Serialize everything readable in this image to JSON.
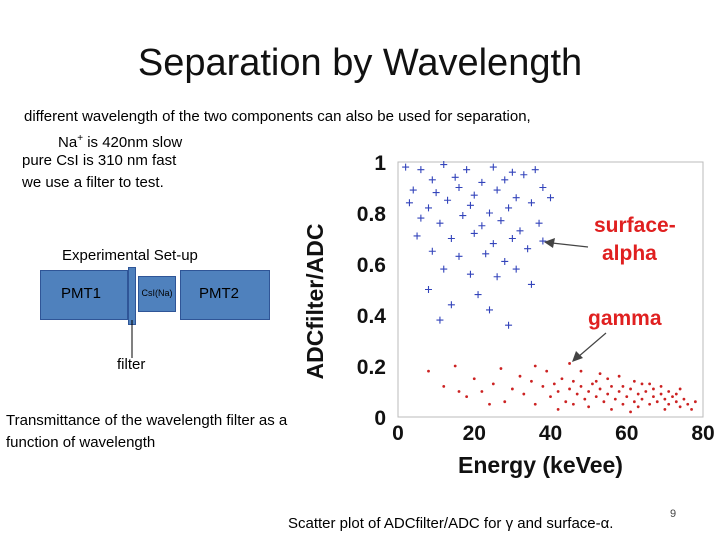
{
  "slide": {
    "title": "Separation by Wavelength",
    "intro_lines": [
      "different wavelength of the two components can also be used for separation,",
      "Na",
      "+",
      " is 420nm slow",
      "pure CsI is 310 nm fast",
      "we use a filter to test."
    ],
    "setup_label": "Experimental Set-up",
    "pmt1_label": "PMT1",
    "pmt2_label": "PMT2",
    "crystal_label": "CsI(Na)",
    "filter_label": "filter",
    "transmittance_caption": "Transmittance of the wavelength filter as a function of wavelength",
    "scatter_caption": "Scatter plot of ADCfilter/ADC for γ and surface-α.",
    "page_number": "9"
  },
  "chart_data": {
    "type": "scatter",
    "title": "",
    "xlabel": "Energy (keVee)",
    "ylabel": "ADCfilter/ADC",
    "xlim": [
      0,
      80
    ],
    "ylim": [
      0,
      1
    ],
    "xticks": [
      0,
      20,
      40,
      60,
      80
    ],
    "yticks": [
      0,
      0.2,
      0.4,
      0.6,
      0.8,
      1
    ],
    "xtick_labels": [
      "0",
      "20",
      "40",
      "60",
      "80"
    ],
    "ytick_labels": [
      "0",
      "0.2",
      "0.4",
      "0.6",
      "0.8",
      "1"
    ],
    "series": [
      {
        "name": "surface-alpha",
        "marker": "plus",
        "color": "#3344bb",
        "points": [
          [
            2,
            0.98
          ],
          [
            6,
            0.97
          ],
          [
            12,
            0.99
          ],
          [
            18,
            0.97
          ],
          [
            25,
            0.98
          ],
          [
            30,
            0.96
          ],
          [
            36,
            0.97
          ],
          [
            9,
            0.93
          ],
          [
            15,
            0.94
          ],
          [
            22,
            0.92
          ],
          [
            28,
            0.93
          ],
          [
            33,
            0.95
          ],
          [
            4,
            0.89
          ],
          [
            10,
            0.88
          ],
          [
            16,
            0.9
          ],
          [
            20,
            0.87
          ],
          [
            26,
            0.89
          ],
          [
            31,
            0.86
          ],
          [
            38,
            0.9
          ],
          [
            3,
            0.84
          ],
          [
            8,
            0.82
          ],
          [
            13,
            0.85
          ],
          [
            19,
            0.83
          ],
          [
            24,
            0.8
          ],
          [
            29,
            0.82
          ],
          [
            35,
            0.84
          ],
          [
            40,
            0.86
          ],
          [
            6,
            0.78
          ],
          [
            11,
            0.76
          ],
          [
            17,
            0.79
          ],
          [
            22,
            0.75
          ],
          [
            27,
            0.77
          ],
          [
            32,
            0.73
          ],
          [
            37,
            0.76
          ],
          [
            5,
            0.71
          ],
          [
            14,
            0.7
          ],
          [
            20,
            0.72
          ],
          [
            25,
            0.68
          ],
          [
            30,
            0.7
          ],
          [
            34,
            0.66
          ],
          [
            38,
            0.69
          ],
          [
            9,
            0.65
          ],
          [
            16,
            0.63
          ],
          [
            23,
            0.64
          ],
          [
            28,
            0.61
          ],
          [
            12,
            0.58
          ],
          [
            19,
            0.56
          ],
          [
            26,
            0.55
          ],
          [
            31,
            0.58
          ],
          [
            35,
            0.52
          ],
          [
            8,
            0.5
          ],
          [
            21,
            0.48
          ],
          [
            14,
            0.44
          ],
          [
            24,
            0.42
          ],
          [
            11,
            0.38
          ],
          [
            29,
            0.36
          ]
        ]
      },
      {
        "name": "gamma",
        "marker": "dot",
        "color": "#cc2222",
        "points": [
          [
            8,
            0.18
          ],
          [
            12,
            0.12
          ],
          [
            15,
            0.2
          ],
          [
            18,
            0.08
          ],
          [
            20,
            0.15
          ],
          [
            22,
            0.1
          ],
          [
            25,
            0.13
          ],
          [
            27,
            0.19
          ],
          [
            28,
            0.06
          ],
          [
            30,
            0.11
          ],
          [
            32,
            0.16
          ],
          [
            33,
            0.09
          ],
          [
            35,
            0.14
          ],
          [
            36,
            0.05
          ],
          [
            38,
            0.12
          ],
          [
            39,
            0.18
          ],
          [
            40,
            0.08
          ],
          [
            41,
            0.13
          ],
          [
            42,
            0.1
          ],
          [
            43,
            0.15
          ],
          [
            44,
            0.06
          ],
          [
            45,
            0.11
          ],
          [
            46,
            0.14
          ],
          [
            47,
            0.09
          ],
          [
            48,
            0.12
          ],
          [
            49,
            0.07
          ],
          [
            50,
            0.1
          ],
          [
            51,
            0.13
          ],
          [
            52,
            0.08
          ],
          [
            53,
            0.11
          ],
          [
            54,
            0.06
          ],
          [
            55,
            0.09
          ],
          [
            56,
            0.12
          ],
          [
            57,
            0.07
          ],
          [
            58,
            0.1
          ],
          [
            59,
            0.05
          ],
          [
            60,
            0.08
          ],
          [
            61,
            0.11
          ],
          [
            62,
            0.06
          ],
          [
            63,
            0.09
          ],
          [
            64,
            0.07
          ],
          [
            65,
            0.1
          ],
          [
            66,
            0.05
          ],
          [
            67,
            0.08
          ],
          [
            68,
            0.06
          ],
          [
            69,
            0.09
          ],
          [
            70,
            0.07
          ],
          [
            71,
            0.05
          ],
          [
            72,
            0.08
          ],
          [
            73,
            0.06
          ],
          [
            74,
            0.04
          ],
          [
            75,
            0.07
          ],
          [
            76,
            0.05
          ],
          [
            77,
            0.03
          ],
          [
            78,
            0.06
          ],
          [
            62,
            0.14
          ],
          [
            58,
            0.16
          ],
          [
            66,
            0.13
          ],
          [
            48,
            0.18
          ],
          [
            53,
            0.17
          ],
          [
            45,
            0.21
          ],
          [
            56,
            0.03
          ],
          [
            61,
            0.02
          ],
          [
            50,
            0.04
          ],
          [
            70,
            0.03
          ],
          [
            36,
            0.2
          ],
          [
            24,
            0.05
          ],
          [
            16,
            0.1
          ],
          [
            42,
            0.03
          ],
          [
            59,
            0.12
          ],
          [
            64,
            0.13
          ],
          [
            67,
            0.11
          ],
          [
            73,
            0.09
          ],
          [
            69,
            0.12
          ],
          [
            52,
            0.14
          ],
          [
            46,
            0.05
          ],
          [
            55,
            0.15
          ],
          [
            63,
            0.04
          ],
          [
            71,
            0.1
          ],
          [
            74,
            0.11
          ]
        ]
      }
    ],
    "annotations": [
      {
        "text": "surface-",
        "color": "#e02020"
      },
      {
        "text": "alpha",
        "color": "#e02020"
      },
      {
        "text": "gamma",
        "color": "#e02020"
      }
    ]
  }
}
